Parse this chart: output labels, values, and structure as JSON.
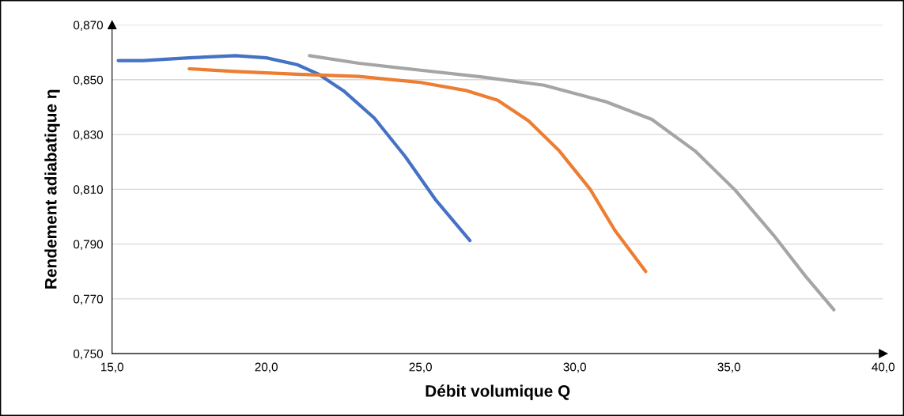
{
  "chart_data": {
    "type": "line",
    "xlabel": "Débit volumique Q",
    "ylabel": "Rendement adiabatique η",
    "xlim": [
      15,
      40
    ],
    "ylim": [
      0.75,
      0.87
    ],
    "xticks": [
      {
        "value": 15,
        "label": "15,0"
      },
      {
        "value": 20,
        "label": "20,0"
      },
      {
        "value": 25,
        "label": "25,0"
      },
      {
        "value": 30,
        "label": "30,0"
      },
      {
        "value": 35,
        "label": "35,0"
      },
      {
        "value": 40,
        "label": "40,0"
      }
    ],
    "yticks": [
      {
        "value": 0.75,
        "label": "0,750"
      },
      {
        "value": 0.77,
        "label": "0,770"
      },
      {
        "value": 0.79,
        "label": "0,790"
      },
      {
        "value": 0.81,
        "label": "0,810"
      },
      {
        "value": 0.83,
        "label": "0,830"
      },
      {
        "value": 0.85,
        "label": "0,850"
      },
      {
        "value": 0.87,
        "label": "0,870"
      }
    ],
    "grid": "y",
    "marker": "none",
    "line_style": "solid",
    "series": [
      {
        "color": "#4472c4",
        "x": [
          15.2,
          16,
          17.5,
          19,
          20,
          21,
          21.7,
          22.5,
          23.5,
          24.5,
          25.5,
          26.6
        ],
        "values": [
          0.857,
          0.857,
          0.858,
          0.8588,
          0.858,
          0.8555,
          0.852,
          0.846,
          0.836,
          0.822,
          0.806,
          0.7913
        ]
      },
      {
        "color": "#ed7d31",
        "x": [
          17.5,
          19,
          21,
          23,
          25,
          26.5,
          27.5,
          28.5,
          29.5,
          30.5,
          31.3,
          32.3
        ],
        "values": [
          0.854,
          0.853,
          0.852,
          0.8512,
          0.849,
          0.846,
          0.8425,
          0.835,
          0.824,
          0.81,
          0.795,
          0.78
        ]
      },
      {
        "color": "#a5a5a5",
        "x": [
          21.4,
          23,
          25,
          27,
          29,
          31,
          32.5,
          33.9,
          35.2,
          36.5,
          37.5,
          38.4
        ],
        "values": [
          0.8588,
          0.856,
          0.8535,
          0.851,
          0.848,
          0.842,
          0.8355,
          0.824,
          0.8097,
          0.7925,
          0.778,
          0.766
        ]
      }
    ]
  }
}
